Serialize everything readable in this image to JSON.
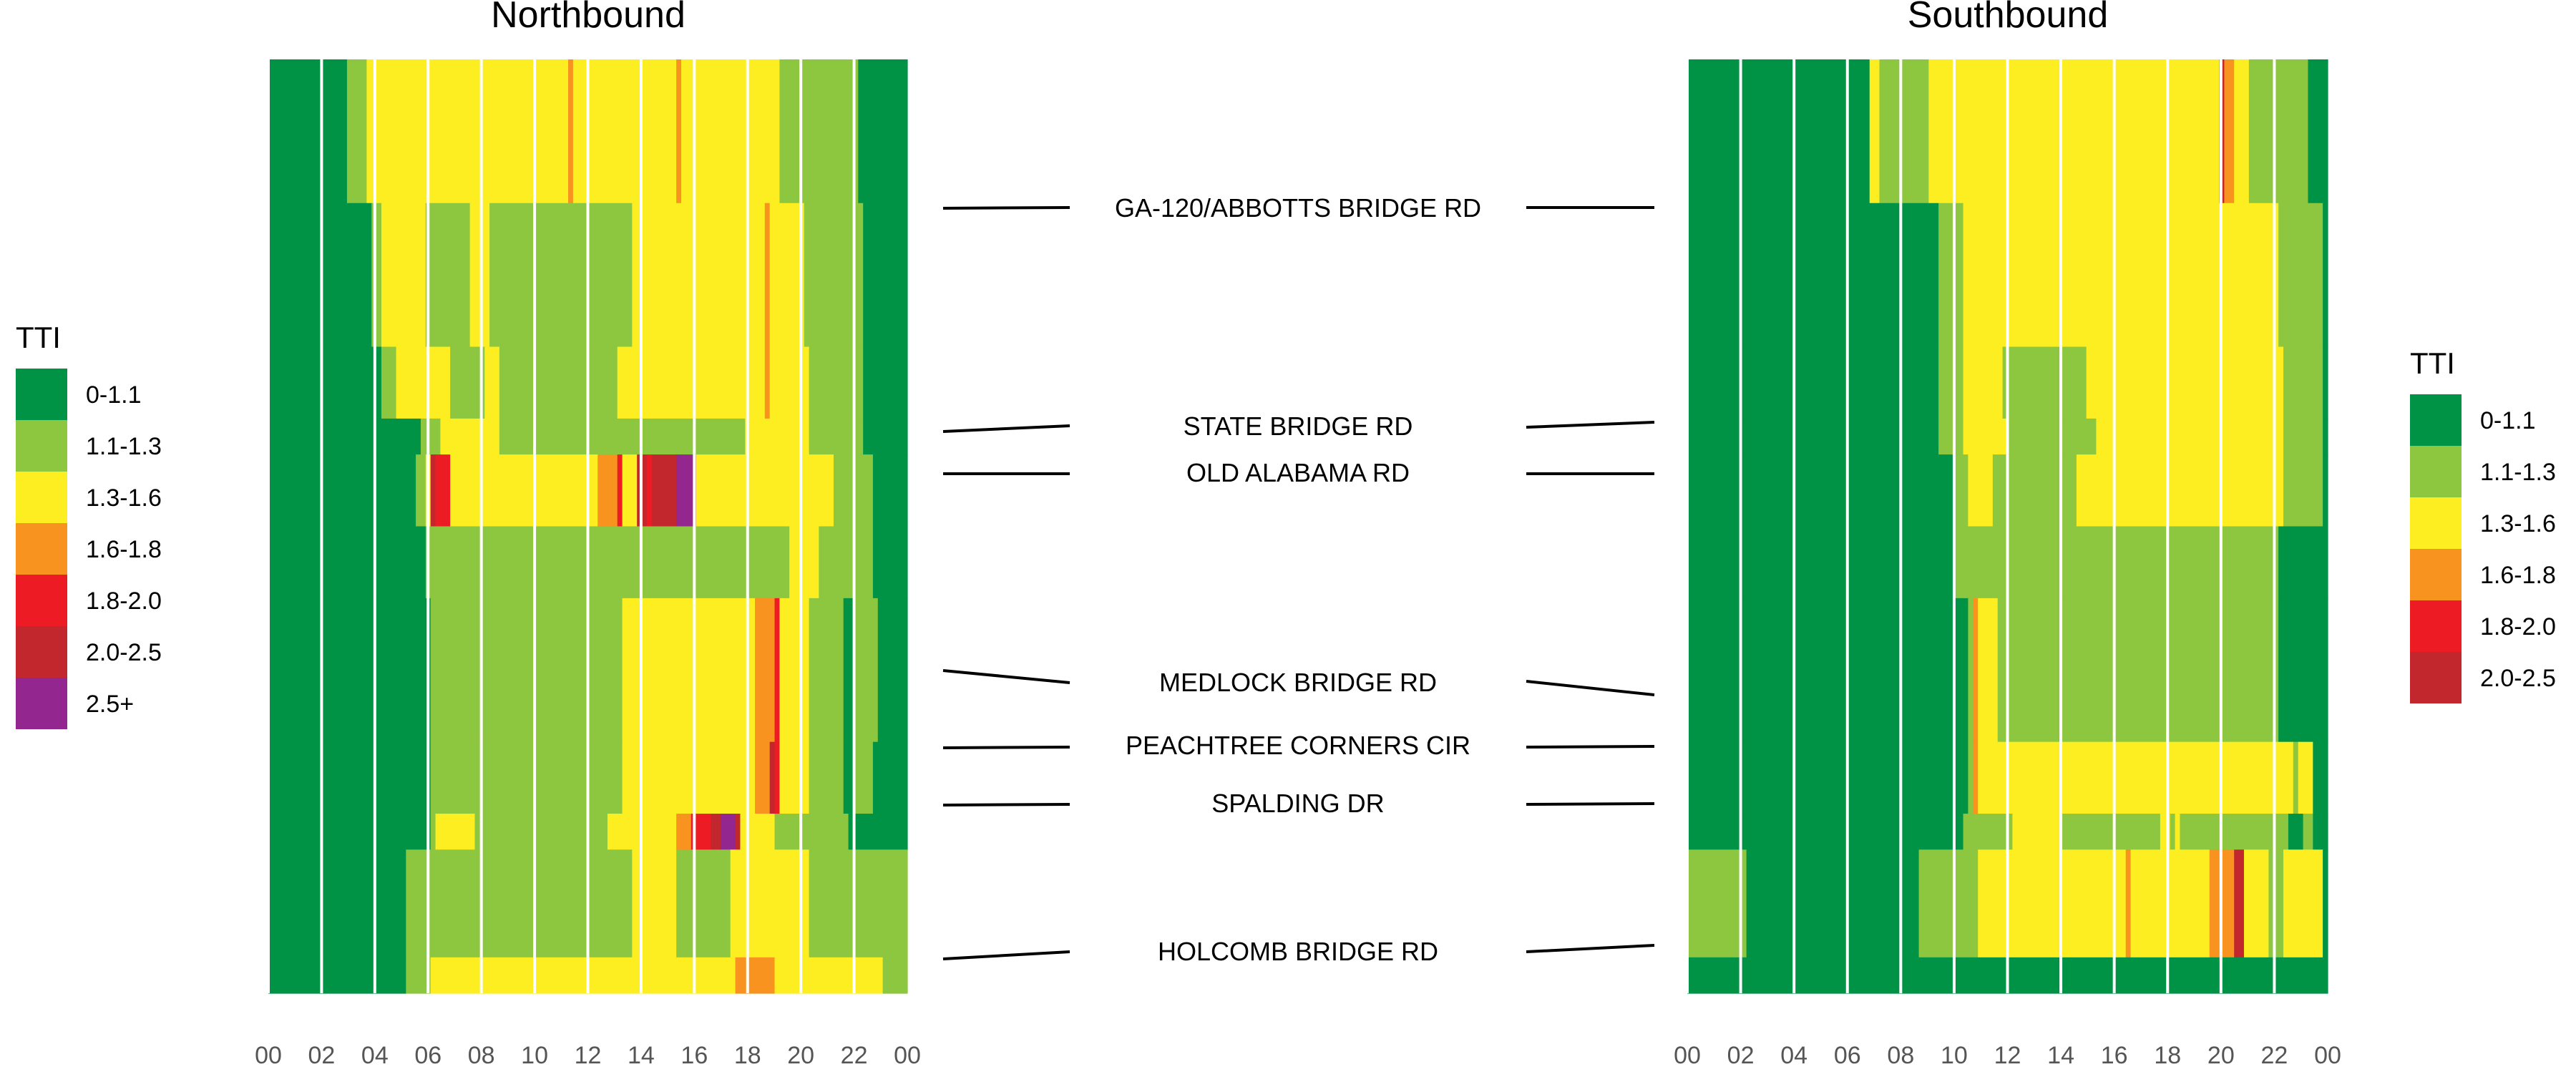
{
  "colors": {
    "c0": "#009245",
    "c1": "#8DC63F",
    "c2": "#FCEE21",
    "c3": "#F7931E",
    "c4": "#ED1C24",
    "c5": "#C1272D",
    "c6": "#93278F",
    "gridline": "#ffffff",
    "connector": "#000000"
  },
  "chart_data": {
    "type": "heatmap",
    "metric": "TTI",
    "x_tick_labels": [
      "00",
      "02",
      "04",
      "06",
      "08",
      "10",
      "12",
      "14",
      "16",
      "18",
      "20",
      "22",
      "00"
    ],
    "x_range_hours": [
      0,
      24
    ],
    "roads": [
      "GA-120/ABBOTTS BRIDGE RD",
      "STATE BRIDGE RD",
      "OLD ALABAMA RD",
      "MEDLOCK BRIDGE RD",
      "PEACHTREE CORNERS CIR",
      "SPALDING DR",
      "HOLCOMB BRIDGE RD"
    ],
    "legends": [
      {
        "title": "TTI",
        "position": "left",
        "items": [
          {
            "label": "0-1.1",
            "color": "#009245"
          },
          {
            "label": "1.1-1.3",
            "color": "#8DC63F"
          },
          {
            "label": "1.3-1.6",
            "color": "#FCEE21"
          },
          {
            "label": "1.6-1.8",
            "color": "#F7931E"
          },
          {
            "label": "1.8-2.0",
            "color": "#ED1C24"
          },
          {
            "label": "2.0-2.5",
            "color": "#C1272D"
          },
          {
            "label": "2.5+",
            "color": "#93278F"
          }
        ]
      },
      {
        "title": "TTI",
        "position": "right",
        "items": [
          {
            "label": "0-1.1",
            "color": "#009245"
          },
          {
            "label": "1.1-1.3",
            "color": "#8DC63F"
          },
          {
            "label": "1.3-1.6",
            "color": "#FCEE21"
          },
          {
            "label": "1.6-1.8",
            "color": "#F7931E"
          },
          {
            "label": "1.8-2.0",
            "color": "#ED1C24"
          },
          {
            "label": "2.0-2.5",
            "color": "#C1272D"
          }
        ]
      }
    ],
    "panels": [
      {
        "title": "Northbound",
        "row_weights": [
          4,
          4,
          2,
          1,
          2,
          2,
          4,
          2,
          1,
          3,
          1
        ],
        "rows": [
          "0000000000000000111122222222222222222222222222222222222222222322222222222222222222232222222222222222222211111111111111110000000000",
          "0000000000000000000001122222222211111111122221111111111111111111111111111122222222222222222222222222232222222111111111111000000000",
          "0000000000000000000000011122222222222111111122211111111111111111111111122222222222222222222222222222232222222211111111111000000000",
          "0000000000000000000000000000000111122222222222211111111111111111111111111111111111111111111111111222222222222211111111111000000000",
          "0000000000000000000000000000001125444222222222222222222222222222222333342225545555566662222222222222222222222222222111111110000000",
          "0000000000000000000000000000000011111111111111111111111111111111111111111111111111111111111111111111111111222222111111111110000000",
          "0000000000000000000000000000000001111111111111111111111111111111111111112222222222222222222222222223333422222211111110011111000000",
          "0000000000000000000000000000000001111111111111111111111111111111111111112222222222222222222222222223335422222211111110011110000000",
          "0000000000000000000000000000000001222222221111111111111111111111111112222222222222233344445566652222222111111111111111000000000000",
          "0000000000000000000000000000111111111111111111111111111111111111111111111122222222211111111111222222222222222211111111111111111111",
          "0000000000000000000000000000111112222222222222222222222222222222222222222222222222222222222222233333333222222222222222222222211111"
        ]
      },
      {
        "title": "Southbound",
        "row_weights": [
          4,
          4,
          2,
          1,
          2,
          2,
          4,
          2,
          1,
          3,
          1
        ],
        "rows": [
          "0000000000000000000000000000000000000221111111111222222222222222222222222222222222222222222222222222222222225332221111111111110000",
          "0000000000000000000000000000000000000000000000000001111122222222222222222222222222222222222222222222222222222222222222221111111110",
          "0000000000000000000000000000000000000000000000000001111122222222111111111111111112222222222222222222222222222222222222222111111110",
          "0000000000000000000000000000000000000000000000000001111122222222211111111111111111122222222222222222222222222222222222222111111110",
          "0000000000000000000000000000000000000000000000000000001112222211111111111111111222222222222222222222222222222222222222222111111110",
          "0000000000000000000000000000000000000000000000000000001111111111111111111111111111111111111111111111111111111111111111110000000000",
          "0000000000000000000000000000000000000000000000000000000001322221111111111111111111111111111111111111111111111111111111110000000000",
          "0000000000000000000000000000000000000000000000000000000001322222222222222222222222222222222222222222222222222222222222222221222000",
          "0000000000000000000000000000000000000000000000000000000011111111112222222222111111111111111111112212111111111111111111111100011000",
          "1111111111110000000000000000000000000000000000011111111111122222222222222222222222222222232222222222222222333335522222111222222220",
          "0000000000000000000000000000000000000000000000000000000000000000000000000000000000000000000000000000000000000000000000000000000000"
        ]
      }
    ]
  }
}
